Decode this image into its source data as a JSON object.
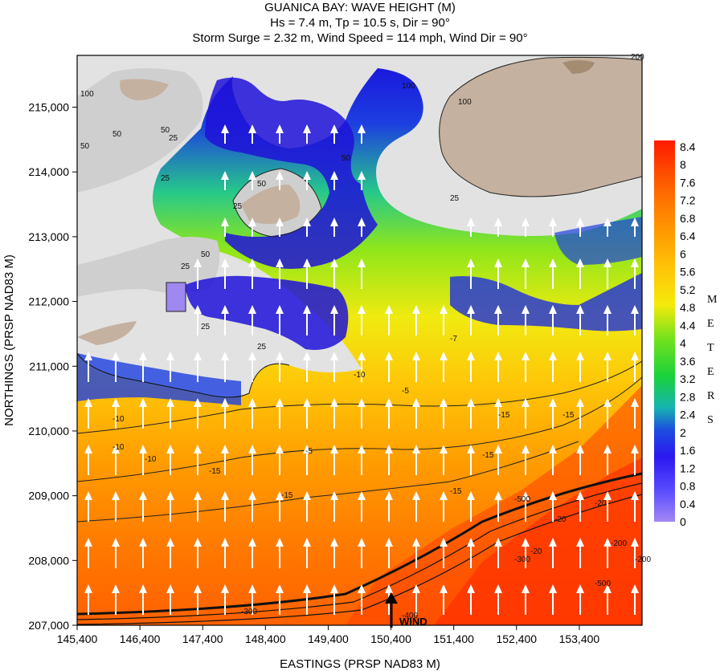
{
  "header": {
    "title": "GUANICA BAY: WAVE HEIGHT (M)",
    "subtitle1": "Hs = 7.4 m, Tp = 10.5 s, Dir = 90°",
    "subtitle2": "Storm Surge = 2.32 m, Wind Speed = 114 mph, Wind Dir = 90°"
  },
  "colors": {
    "land_high": "#c5b19f",
    "land_low": "#cfcfcf",
    "land_lowest": "#e2e2e2",
    "wave_scale": [
      "#a387f5",
      "#5b4dff",
      "#1f10e0",
      "#1d4de0",
      "#16b4b0",
      "#19d13c",
      "#73e21d",
      "#cde814",
      "#fde909",
      "#ffc107",
      "#ff9a00",
      "#ff6b00",
      "#ff3d00",
      "#ff2000"
    ]
  },
  "legend": {
    "meters_label": [
      "M",
      "E",
      "T",
      "E",
      "R",
      "S"
    ],
    "wind_label": "WIND"
  },
  "chart_data": {
    "type": "heatmap",
    "title": "GUANICA BAY: WAVE HEIGHT (M)",
    "subtitle": "Hs = 7.4 m, Tp = 10.5 s, Dir = 90° / Storm Surge = 2.32 m, Wind Speed = 114 mph, Wind Dir = 90°",
    "xlabel": "EASTINGS (PRSP NAD83 M)",
    "ylabel": "NORTHINGS (PRSP NAD83 M)",
    "xlim": [
      145400,
      154400
    ],
    "ylim": [
      207000,
      215800
    ],
    "x_ticks": [
      "145,400",
      "146,400",
      "147,400",
      "148,400",
      "149,400",
      "150,400",
      "151,400",
      "152,400",
      "153,400"
    ],
    "y_ticks": [
      "207,000",
      "208,000",
      "209,000",
      "210,000",
      "211,000",
      "212,000",
      "213,000",
      "214,000",
      "215,000"
    ],
    "colorbar": {
      "label": "METERS",
      "ticks": [
        "8.4",
        "8",
        "7.6",
        "7.2",
        "6.8",
        "6.4",
        "6",
        "5.6",
        "5.2",
        "4.8",
        "4.4",
        "4",
        "3.6",
        "3.2",
        "2.8",
        "2.4",
        "2",
        "1.6",
        "1.2",
        "0.8",
        "0.4",
        "0"
      ],
      "range": [
        0,
        8.4
      ]
    },
    "land_contour_labels": [
      "200",
      "100",
      "100",
      "100",
      "50",
      "50",
      "50",
      "50",
      "50",
      "50",
      "25",
      "25",
      "25",
      "25",
      "25",
      "25",
      "25"
    ],
    "depth_contour_labels": [
      "-5",
      "-5",
      "-7",
      "-10",
      "-10",
      "-10",
      "-10",
      "-15",
      "-15",
      "-15",
      "-15",
      "-15",
      "-15",
      "-20",
      "-20",
      "-20",
      "-200",
      "-200",
      "-300",
      "-300",
      "-400",
      "-500",
      "-500"
    ],
    "vector_arrows": "wave direction toward north (90°)",
    "annotation": "WIND"
  }
}
